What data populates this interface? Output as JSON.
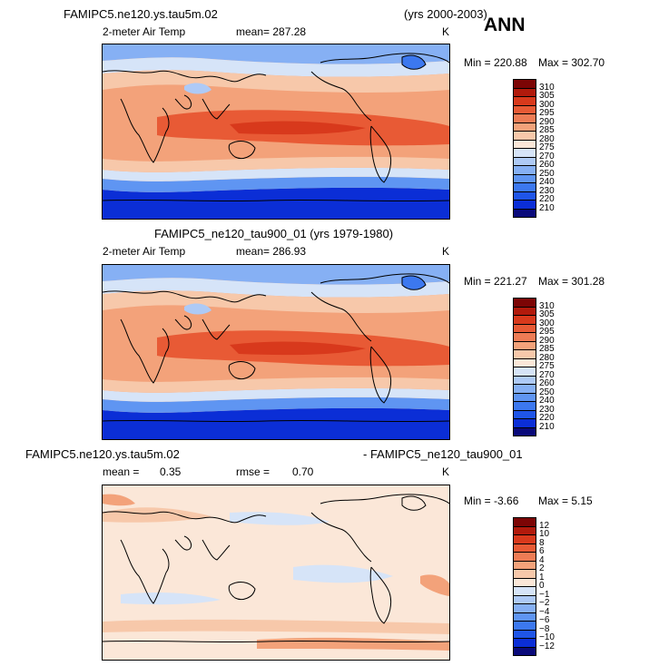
{
  "season": "ANN",
  "panels": [
    {
      "case_title": "FAMIPC5.ne120.ys.tau5m.02",
      "years": "(yrs 2000-2003)",
      "variable": "2-meter Air Temp",
      "mean_text": "mean= 287.28",
      "units": "K",
      "min_text": "Min = 220.88",
      "max_text": "Max = 302.70",
      "levels": [
        210,
        220,
        230,
        240,
        250,
        260,
        270,
        275,
        280,
        285,
        290,
        295,
        300,
        305,
        310
      ],
      "colors": [
        "#0a0a7a",
        "#0b2ed6",
        "#1f55e8",
        "#3c78ef",
        "#5f95f2",
        "#86b0f4",
        "#aecaf6",
        "#d6e4f8",
        "#fbe7d8",
        "#f7c8aa",
        "#f3a27a",
        "#ee7c55",
        "#e85a35",
        "#d8391c",
        "#b11a0c",
        "#7c0505"
      ],
      "kind": "temp"
    },
    {
      "case_title": "FAMIPC5_ne120_tau900_01 (yrs 1979-1980)",
      "years": "",
      "variable": "2-meter Air Temp",
      "mean_text": "mean= 286.93",
      "units": "K",
      "min_text": "Min = 221.27",
      "max_text": "Max = 301.28",
      "levels": [
        210,
        220,
        230,
        240,
        250,
        260,
        270,
        275,
        280,
        285,
        290,
        295,
        300,
        305,
        310
      ],
      "colors": [
        "#0a0a7a",
        "#0b2ed6",
        "#1f55e8",
        "#3c78ef",
        "#5f95f2",
        "#86b0f4",
        "#aecaf6",
        "#d6e4f8",
        "#fbe7d8",
        "#f7c8aa",
        "#f3a27a",
        "#ee7c55",
        "#e85a35",
        "#d8391c",
        "#b11a0c",
        "#7c0505"
      ],
      "kind": "temp"
    },
    {
      "case_title": "FAMIPC5.ne120.ys.tau5m.02",
      "case_title_right": "- FAMIPC5_ne120_tau900_01",
      "mean_label": "mean =",
      "mean_value": "0.35",
      "rmse_label": "rmse =",
      "rmse_value": "0.70",
      "units": "K",
      "min_text": "Min =   -3.66",
      "max_text": "Max =    5.15",
      "levels": [
        "-12",
        "-10",
        "-8",
        "-6",
        "-4",
        "-2",
        "-1",
        "0",
        "1",
        "2",
        "4",
        "6",
        "8",
        "10",
        "12"
      ],
      "colors": [
        "#0a0a7a",
        "#0b2ed6",
        "#1f55e8",
        "#3c78ef",
        "#5f95f2",
        "#86b0f4",
        "#aecaf6",
        "#d6e4f8",
        "#fbe7d8",
        "#f7c8aa",
        "#f3a27a",
        "#ee7c55",
        "#e85a35",
        "#d8391c",
        "#b11a0c",
        "#7c0505"
      ],
      "kind": "diff"
    }
  ]
}
